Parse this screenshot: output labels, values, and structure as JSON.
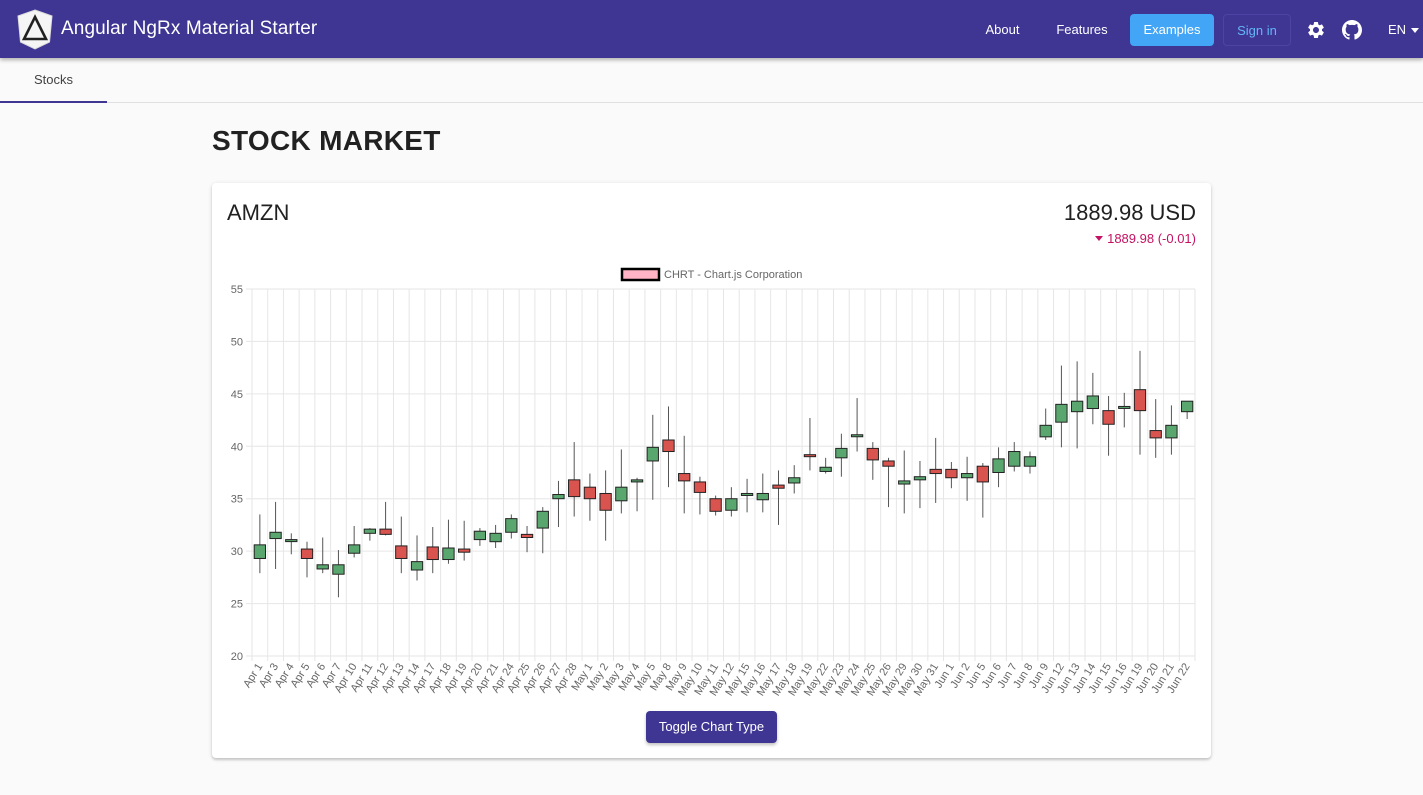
{
  "header": {
    "brand": "Angular NgRx Material Starter",
    "nav": {
      "about": "About",
      "features": "Features",
      "examples": "Examples",
      "signin": "Sign in"
    },
    "language": "EN",
    "icons": [
      "angular-logo-icon",
      "gear-icon",
      "github-icon",
      "chevron-down-icon"
    ],
    "colors": {
      "primary": "#3f3694",
      "accent": "#42a5f5"
    }
  },
  "tabs": [
    {
      "label": "Stocks",
      "active": true
    }
  ],
  "page": {
    "title": "STOCK MARKET"
  },
  "stock": {
    "symbol": "AMZN",
    "price": "1889.98 USD",
    "change": "1889.98 (-0.01)",
    "toggle_button": "Toggle Chart Type"
  },
  "chart_data": {
    "type": "candlestick",
    "legend": "CHRT - Chart.js Corporation",
    "legend_position": "top",
    "ylim": [
      20,
      55
    ],
    "yticks": [
      20,
      25,
      30,
      35,
      40,
      45,
      50,
      55
    ],
    "grid": true,
    "colors": {
      "up": "#5aa66f",
      "down": "#d9534f",
      "legend_fill": "#ffb3c4"
    },
    "categories": [
      "Apr 1",
      "Apr 3",
      "Apr 4",
      "Apr 5",
      "Apr 6",
      "Apr 7",
      "Apr 10",
      "Apr 11",
      "Apr 12",
      "Apr 13",
      "Apr 14",
      "Apr 17",
      "Apr 18",
      "Apr 19",
      "Apr 20",
      "Apr 21",
      "Apr 24",
      "Apr 25",
      "Apr 26",
      "Apr 27",
      "Apr 28",
      "May 1",
      "May 2",
      "May 3",
      "May 4",
      "May 5",
      "May 8",
      "May 9",
      "May 10",
      "May 11",
      "May 12",
      "May 15",
      "May 16",
      "May 17",
      "May 18",
      "May 19",
      "May 22",
      "May 23",
      "May 24",
      "May 25",
      "May 26",
      "May 29",
      "May 30",
      "May 31",
      "Jun 1",
      "Jun 2",
      "Jun 5",
      "Jun 6",
      "Jun 7",
      "Jun 8",
      "Jun 9",
      "Jun 12",
      "Jun 13",
      "Jun 14",
      "Jun 15",
      "Jun 16",
      "Jun 19",
      "Jun 20",
      "Jun 21",
      "Jun 22"
    ],
    "series": [
      {
        "open": [
          29.3,
          31.2,
          31.0,
          30.2,
          28.3,
          27.8,
          29.8,
          31.7,
          32.1,
          30.5,
          28.2,
          30.4,
          29.2,
          30.2,
          31.1,
          30.9,
          31.8,
          31.6,
          32.2,
          35.0,
          36.8,
          36.1,
          35.5,
          34.8,
          36.6,
          38.6,
          40.6,
          37.4,
          36.6,
          35.0,
          33.9,
          35.4,
          34.9,
          36.3,
          36.5,
          39.2,
          37.6,
          38.9,
          41.0,
          39.8,
          38.6,
          36.4,
          36.8,
          37.8,
          37.8,
          37.0,
          38.1,
          37.5,
          38.1,
          38.1,
          40.9,
          42.3,
          43.3,
          43.6,
          43.4,
          43.7,
          45.4,
          41.5,
          40.8,
          43.3
        ],
        "close": [
          30.6,
          31.8,
          31.1,
          29.3,
          28.7,
          28.7,
          30.6,
          32.1,
          31.6,
          29.3,
          29.0,
          29.2,
          30.3,
          29.9,
          31.9,
          31.7,
          33.1,
          31.3,
          33.8,
          35.4,
          35.2,
          35.0,
          33.9,
          36.1,
          36.8,
          39.9,
          39.5,
          36.7,
          35.6,
          33.8,
          35.0,
          35.5,
          35.5,
          36.0,
          37.0,
          39.1,
          38.0,
          39.8,
          41.1,
          38.7,
          38.1,
          36.7,
          37.1,
          37.4,
          37.0,
          37.4,
          36.6,
          38.8,
          39.5,
          39.0,
          42.0,
          44.0,
          44.3,
          44.8,
          42.1,
          43.8,
          43.4,
          40.8,
          42.0,
          44.3
        ],
        "high": [
          33.5,
          34.7,
          31.7,
          30.9,
          31.3,
          30.1,
          32.4,
          32.2,
          34.7,
          33.3,
          31.5,
          32.3,
          33.0,
          32.9,
          32.2,
          32.5,
          33.5,
          32.4,
          34.2,
          36.7,
          40.4,
          37.4,
          37.7,
          39.7,
          37.0,
          43.0,
          43.8,
          41.0,
          37.1,
          35.3,
          36.1,
          36.9,
          37.4,
          37.7,
          38.2,
          42.7,
          38.9,
          41.2,
          44.6,
          40.4,
          38.9,
          39.6,
          38.6,
          40.8,
          38.5,
          39.0,
          38.4,
          39.9,
          40.4,
          39.5,
          43.6,
          47.7,
          48.1,
          47.0,
          44.8,
          45.1,
          49.1,
          44.5,
          43.9,
          44.3
        ],
        "low": [
          27.9,
          28.3,
          29.7,
          27.5,
          27.9,
          25.6,
          29.4,
          31.0,
          31.5,
          27.9,
          27.2,
          27.9,
          28.8,
          29.1,
          30.5,
          30.3,
          31.2,
          29.9,
          29.8,
          32.3,
          33.3,
          32.9,
          31.0,
          33.6,
          33.8,
          34.9,
          36.1,
          33.6,
          33.5,
          33.4,
          33.3,
          33.7,
          33.7,
          32.5,
          35.5,
          37.7,
          37.4,
          37.1,
          39.5,
          36.8,
          34.2,
          33.6,
          34.1,
          34.6,
          36.0,
          34.8,
          33.2,
          36.1,
          37.6,
          37.4,
          40.6,
          39.9,
          39.8,
          42.1,
          39.1,
          41.8,
          39.2,
          38.9,
          39.2,
          42.6
        ]
      }
    ]
  }
}
